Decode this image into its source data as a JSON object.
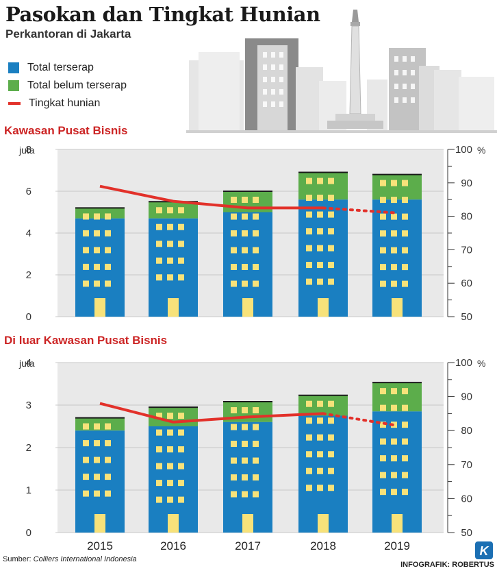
{
  "title": "Pasokan dan Tingkat Hunian",
  "subtitle": "Perkantoran di Jakarta",
  "legend": {
    "absorbed": "Total terserap",
    "unabsorbed": "Total belum terserap",
    "occupancy": "Tingkat hunian"
  },
  "colors": {
    "absorbed": "#1a7fc1",
    "unabsorbed": "#5cad4b",
    "occupancy": "#e2312a",
    "section_title": "#cc2424",
    "window": "#f7e27a"
  },
  "y_unit_left": "juta",
  "y_unit_right": "%",
  "source_label": "Sumber:",
  "source_name": "Colliers International Indonesia",
  "credit": "INFOGRAFIK: ROBERTUS",
  "logo_letter": "K",
  "chart_data": [
    {
      "type": "bar",
      "title": "Kawasan Pusat Bisnis",
      "categories": [
        "2015",
        "2016",
        "2017",
        "2018",
        "2019"
      ],
      "series": [
        {
          "name": "Total terserap",
          "values": [
            4.7,
            4.7,
            5.0,
            5.6,
            5.6
          ]
        },
        {
          "name": "Total belum terserap",
          "values": [
            0.5,
            0.8,
            1.0,
            1.3,
            1.2
          ]
        },
        {
          "name": "Tingkat hunian",
          "axis": "right",
          "values": [
            89,
            84.5,
            82.5,
            82.5,
            81
          ],
          "projected_from_index": 3
        }
      ],
      "ylim": [
        0,
        8
      ],
      "y_ticks": [
        0,
        2,
        4,
        6,
        8
      ],
      "y2lim": [
        50,
        100
      ],
      "y2_ticks": [
        50,
        60,
        70,
        80,
        90,
        100
      ]
    },
    {
      "type": "bar",
      "title": "Di luar Kawasan Pusat Bisnis",
      "categories": [
        "2015",
        "2016",
        "2017",
        "2018",
        "2019"
      ],
      "series": [
        {
          "name": "Total terserap",
          "values": [
            2.4,
            2.5,
            2.6,
            2.75,
            2.85
          ]
        },
        {
          "name": "Total belum terserap",
          "values": [
            0.3,
            0.45,
            0.48,
            0.48,
            0.68
          ]
        },
        {
          "name": "Tingkat hunian",
          "axis": "right",
          "values": [
            88,
            82.5,
            84,
            85,
            81.5
          ],
          "projected_from_index": 3
        }
      ],
      "ylim": [
        0,
        4
      ],
      "y_ticks": [
        0,
        1,
        2,
        3,
        4
      ],
      "y2lim": [
        50,
        100
      ],
      "y2_ticks": [
        50,
        60,
        70,
        80,
        90,
        100
      ]
    }
  ]
}
